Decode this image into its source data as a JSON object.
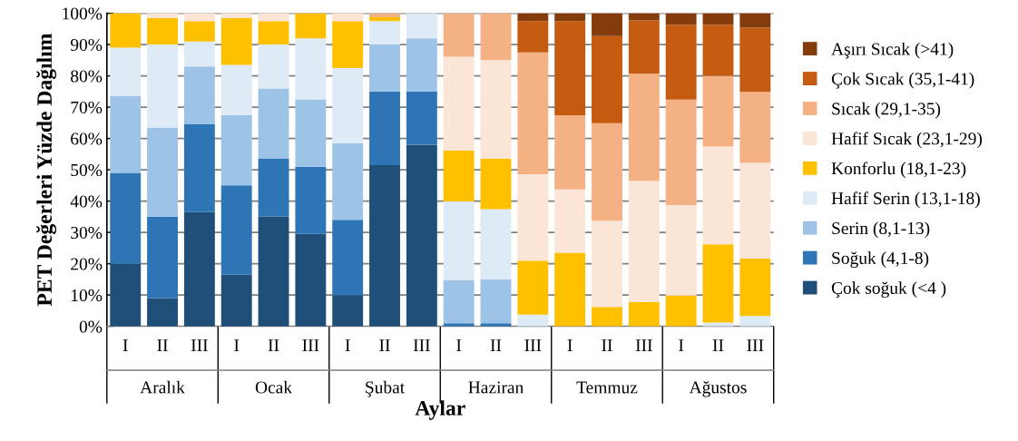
{
  "chart_data": {
    "type": "bar",
    "stacked": true,
    "xlabel": "Aylar",
    "ylabel": "PET Değerleri Yüzde Dağılım",
    "categories": [
      "I",
      "II",
      "III",
      "I",
      "II",
      "III",
      "I",
      "II",
      "III",
      "I",
      "II",
      "III",
      "I",
      "II",
      "III",
      "I",
      "II",
      "III"
    ],
    "annotations": [
      "Aralık",
      "Ocak",
      "Şubat",
      "Haziran",
      "Temmuz",
      "Ağustos"
    ],
    "ylim": [
      0,
      100
    ],
    "yticks": [
      {
        "value": 0,
        "label": "0%"
      },
      {
        "value": 10,
        "label": "10%"
      },
      {
        "value": 20,
        "label": "20%"
      },
      {
        "value": 30,
        "label": "30%"
      },
      {
        "value": 40,
        "label": "40%"
      },
      {
        "value": 50,
        "label": "50%"
      },
      {
        "value": 60,
        "label": "60%"
      },
      {
        "value": 70,
        "label": "70%"
      },
      {
        "value": 80,
        "label": "80%"
      },
      {
        "value": 90,
        "label": "90%"
      },
      {
        "value": 100,
        "label": "100%"
      }
    ],
    "grid": "y",
    "legend": "right",
    "series": [
      {
        "name": "Çok soğuk (<4 )",
        "color": "#1f4e79",
        "values": [
          20,
          9,
          36.5,
          16.5,
          35,
          29.5,
          10,
          51.5,
          58,
          0,
          0,
          0,
          0,
          0,
          0,
          0,
          0,
          0
        ]
      },
      {
        "name": "Soğuk (4,1-8)",
        "color": "#2e75b6",
        "values": [
          29,
          26,
          28,
          28.5,
          18.5,
          21.5,
          24,
          23.5,
          17,
          1,
          1,
          0,
          0,
          0,
          0,
          0,
          0,
          0
        ]
      },
      {
        "name": "Serin (8,1-13)",
        "color": "#9dc3e6",
        "values": [
          24.5,
          28.5,
          18.5,
          22.5,
          22.5,
          21.5,
          24.5,
          15,
          17,
          13.8,
          14,
          0,
          0,
          0,
          0,
          0,
          0,
          0
        ]
      },
      {
        "name": "Hafif Serin (13,1-18)",
        "color": "#deebf7",
        "values": [
          15.5,
          26.5,
          8,
          16,
          14,
          19.5,
          24,
          7.5,
          8,
          25.1,
          22.4,
          3.7,
          0,
          0,
          0,
          0,
          1.2,
          3.3
        ]
      },
      {
        "name": "Konforlu (18,1-23)",
        "color": "#ffc000",
        "values": [
          11,
          8.5,
          6.5,
          15,
          7.5,
          8,
          15,
          1.2,
          0,
          16.2,
          16.2,
          17.3,
          23.5,
          6.2,
          7.8,
          9.8,
          25,
          18.3
        ]
      },
      {
        "name": "Hafif Sıcak (23,1-29)",
        "color": "#fbe5d6",
        "values": [
          0,
          1.5,
          2.5,
          1.5,
          2.5,
          0,
          2.5,
          0,
          0,
          30,
          31.4,
          27.6,
          20.2,
          27.5,
          38.6,
          28.9,
          31.2,
          30.6
        ]
      },
      {
        "name": "Sıcak (29,1-35)",
        "color": "#f4b183",
        "values": [
          0,
          0,
          0,
          0,
          0,
          0,
          0,
          1.3,
          0,
          13.9,
          15,
          38.9,
          23.7,
          31.2,
          34.3,
          33.7,
          22.6,
          22.7
        ]
      },
      {
        "name": "Çok Sıcak (35,1-41)",
        "color": "#c55a11",
        "values": [
          0,
          0,
          0,
          0,
          0,
          0,
          0,
          0,
          0,
          0,
          0,
          10,
          30.1,
          27.8,
          17,
          23.9,
          16.3,
          20.5
        ]
      },
      {
        "name": "Aşırı Sıcak (>41)",
        "color": "#843c0c",
        "values": [
          0,
          0,
          0,
          0,
          0,
          0,
          0,
          0,
          0,
          0,
          0,
          2.5,
          2.5,
          7.3,
          2.3,
          3.7,
          3.7,
          4.6
        ]
      }
    ]
  }
}
